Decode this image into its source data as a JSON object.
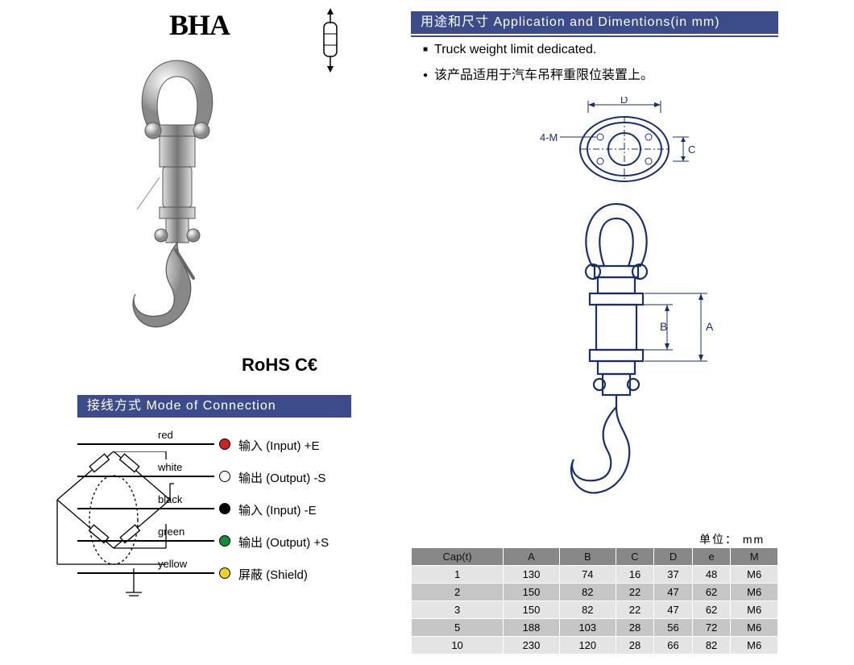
{
  "title": "BHA",
  "certs": "RoHS  C€",
  "headers": {
    "connection": "接线方式 Mode of Connection",
    "application": "用途和尺寸 Application and Dimentions(in mm)"
  },
  "bullets": {
    "b1": "Truck weight limit dedicated.",
    "b2": "该产品适用于汽车吊秤重限位装置上。"
  },
  "unit_label": "单位： mm",
  "wires": [
    {
      "color_name": "red",
      "color_hex": "#d02020",
      "label": "输入 (Input)    +E"
    },
    {
      "color_name": "white",
      "color_hex": "#ffffff",
      "label": "输出 (Output)  -S"
    },
    {
      "color_name": "black",
      "color_hex": "#000000",
      "label": "输入 (Input)    -E"
    },
    {
      "color_name": "green",
      "color_hex": "#109030",
      "label": "输出 (Output)  +S"
    },
    {
      "color_name": "yellow",
      "color_hex": "#f0d020",
      "label": "屏蔽 (Shield)"
    }
  ],
  "dim_labels": {
    "fourM": "4-M",
    "D": "D",
    "C": "C",
    "A": "A",
    "B": "B"
  },
  "table": {
    "columns": [
      "Cap(t)",
      "A",
      "B",
      "C",
      "D",
      "e",
      "M"
    ],
    "rows": [
      [
        "1",
        "130",
        "74",
        "16",
        "37",
        "48",
        "M6"
      ],
      [
        "2",
        "150",
        "82",
        "22",
        "47",
        "62",
        "M6"
      ],
      [
        "3",
        "150",
        "82",
        "22",
        "47",
        "62",
        "M6"
      ],
      [
        "5",
        "188",
        "103",
        "28",
        "56",
        "72",
        "M6"
      ],
      [
        "10",
        "230",
        "120",
        "28",
        "66",
        "82",
        "M6"
      ]
    ]
  },
  "style": {
    "header_bg": "#3c4b8a"
  }
}
